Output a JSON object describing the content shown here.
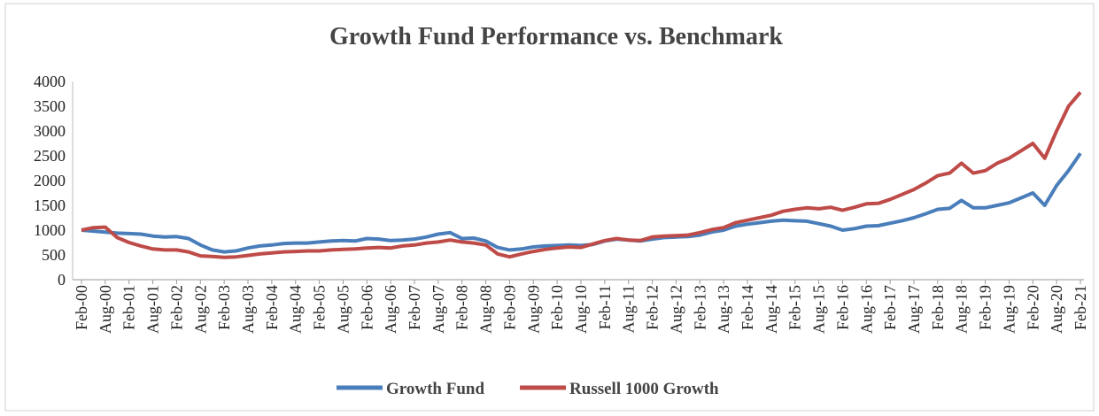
{
  "chart_data": {
    "type": "line",
    "title": "Growth Fund Performance vs. Benchmark",
    "categories": [
      "Feb-00",
      null,
      "Aug-00",
      null,
      "Feb-01",
      null,
      "Aug-01",
      null,
      "Feb-02",
      null,
      "Aug-02",
      null,
      "Feb-03",
      null,
      "Aug-03",
      null,
      "Feb-04",
      null,
      "Aug-04",
      null,
      "Feb-05",
      null,
      "Aug-05",
      null,
      "Feb-06",
      null,
      "Aug-06",
      null,
      "Feb-07",
      null,
      "Aug-07",
      null,
      "Feb-08",
      null,
      "Aug-08",
      null,
      "Feb-09",
      null,
      "Aug-09",
      null,
      "Feb-10",
      null,
      "Aug-10",
      null,
      "Feb-11",
      null,
      "Aug-11",
      null,
      "Feb-12",
      null,
      "Aug-12",
      null,
      "Feb-13",
      null,
      "Aug-13",
      null,
      "Feb-14",
      null,
      "Aug-14",
      null,
      "Feb-15",
      null,
      "Aug-15",
      null,
      "Feb-16",
      null,
      "Aug-16",
      null,
      "Feb-17",
      null,
      "Aug-17",
      null,
      "Feb-18",
      null,
      "Aug-18",
      null,
      "Feb-19",
      null,
      "Aug-19",
      null,
      "Feb-20",
      null,
      "Aug-20",
      null,
      "Feb-21"
    ],
    "series": [
      {
        "name": "Growth Fund",
        "color": "#4a7ebb",
        "values": [
          1000,
          980,
          960,
          940,
          930,
          920,
          880,
          860,
          870,
          830,
          700,
          600,
          560,
          580,
          640,
          680,
          700,
          730,
          740,
          740,
          760,
          780,
          790,
          780,
          830,
          820,
          790,
          800,
          820,
          860,
          920,
          950,
          830,
          840,
          780,
          650,
          600,
          620,
          660,
          680,
          690,
          700,
          690,
          710,
          780,
          820,
          800,
          780,
          820,
          850,
          860,
          870,
          900,
          960,
          1000,
          1080,
          1120,
          1150,
          1180,
          1200,
          1190,
          1180,
          1130,
          1080,
          1000,
          1030,
          1080,
          1090,
          1140,
          1190,
          1250,
          1330,
          1420,
          1440,
          1600,
          1450,
          1450,
          1500,
          1550,
          1650,
          1750,
          1500,
          1900,
          2200,
          2550
        ]
      },
      {
        "name": "Russell 1000 Growth",
        "color": "#be4b48",
        "values": [
          1000,
          1050,
          1060,
          850,
          750,
          680,
          620,
          600,
          600,
          560,
          480,
          470,
          450,
          460,
          490,
          520,
          540,
          560,
          570,
          580,
          580,
          600,
          610,
          620,
          640,
          650,
          640,
          680,
          700,
          740,
          760,
          800,
          760,
          740,
          700,
          520,
          460,
          520,
          570,
          610,
          640,
          660,
          650,
          720,
          790,
          830,
          800,
          790,
          860,
          880,
          890,
          900,
          950,
          1010,
          1050,
          1150,
          1200,
          1250,
          1300,
          1380,
          1420,
          1450,
          1430,
          1460,
          1400,
          1460,
          1530,
          1540,
          1620,
          1720,
          1820,
          1950,
          2100,
          2150,
          2350,
          2150,
          2200,
          2350,
          2450,
          2600,
          2750,
          2450,
          3000,
          3500,
          3780
        ]
      }
    ],
    "ylim": [
      0,
      4000
    ],
    "yticks": [
      0,
      500,
      1000,
      1500,
      2000,
      2500,
      3000,
      3500,
      4000
    ],
    "legend": "bottom"
  }
}
